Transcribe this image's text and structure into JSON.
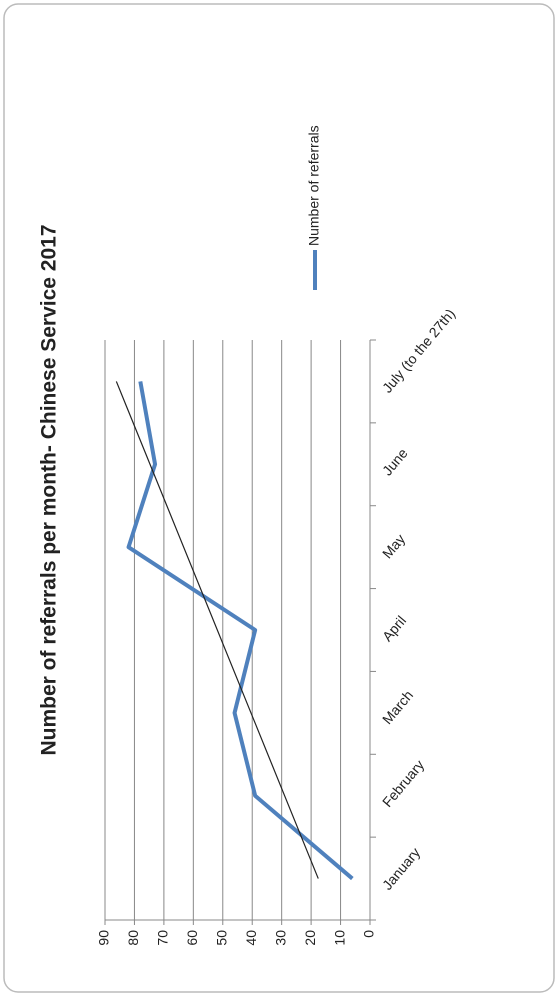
{
  "chart_data": {
    "type": "line",
    "title": "Number of referrals per month- Chinese Service 2017",
    "categories": [
      "January",
      "February",
      "March",
      "April",
      "May",
      "June",
      "July (to the 27th)"
    ],
    "series": [
      {
        "name": "Number of referrals",
        "color": "#4f81bd",
        "values": [
          6,
          39,
          46,
          39,
          82,
          73,
          78
        ]
      }
    ],
    "ylim": [
      0,
      90
    ],
    "yticks": [
      0,
      10,
      20,
      30,
      40,
      50,
      60,
      70,
      80,
      90
    ],
    "grid": true,
    "trendline": "linear",
    "trendline_color": "#222222",
    "legend": "right"
  }
}
